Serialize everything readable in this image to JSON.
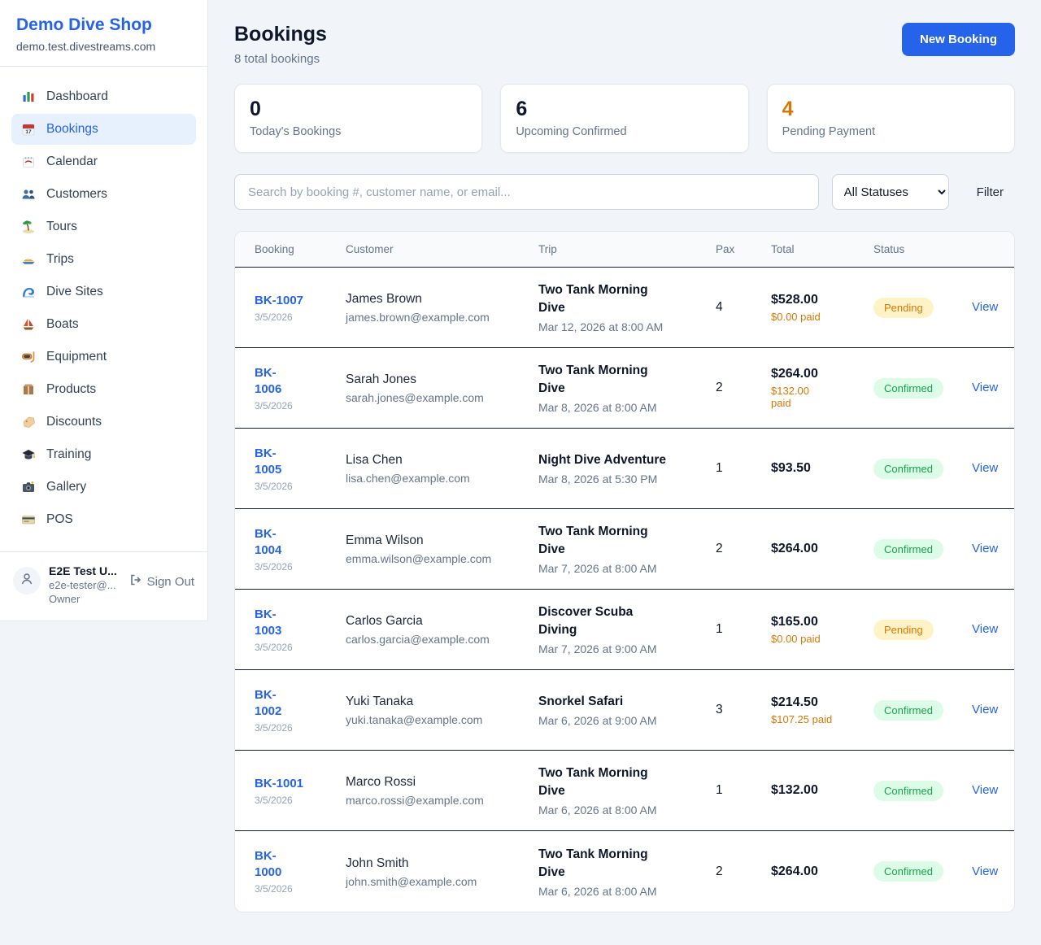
{
  "app": {
    "name": "Demo Dive Shop",
    "domain": "demo.test.divestreams.com"
  },
  "sidebar": {
    "active_item": "Bookings",
    "items": [
      {
        "label": "Dashboard",
        "icon": "dashboard"
      },
      {
        "label": "Bookings",
        "icon": "bookings"
      },
      {
        "label": "Calendar",
        "icon": "calendar"
      },
      {
        "label": "Customers",
        "icon": "customers"
      },
      {
        "label": "Tours",
        "icon": "tours"
      },
      {
        "label": "Trips",
        "icon": "trips"
      },
      {
        "label": "Dive Sites",
        "icon": "dive-sites"
      },
      {
        "label": "Boats",
        "icon": "boats"
      },
      {
        "label": "Equipment",
        "icon": "equipment"
      },
      {
        "label": "Products",
        "icon": "products"
      },
      {
        "label": "Discounts",
        "icon": "discounts"
      },
      {
        "label": "Training",
        "icon": "training"
      },
      {
        "label": "Gallery",
        "icon": "gallery"
      },
      {
        "label": "POS",
        "icon": "pos"
      }
    ],
    "user": {
      "name": "E2E Test U...",
      "email": "e2e-tester@...",
      "role": "Owner",
      "sign_out_label": "Sign Out"
    }
  },
  "header": {
    "title": "Bookings",
    "subtitle": "8 total bookings",
    "new_booking_label": "New Booking"
  },
  "stats": [
    {
      "value": "0",
      "label": "Today's Bookings",
      "color": "#0f172a"
    },
    {
      "value": "6",
      "label": "Upcoming Confirmed",
      "color": "#0f172a"
    },
    {
      "value": "4",
      "label": "Pending Payment",
      "color": "#d97706"
    }
  ],
  "filters": {
    "search_placeholder": "Search by booking #, customer name, or email...",
    "status_selected": "All Statuses",
    "filter_label": "Filter"
  },
  "table": {
    "columns": [
      "Booking",
      "Customer",
      "Trip",
      "Pax",
      "Total",
      "Status"
    ],
    "view_label": "View",
    "rows": [
      {
        "id": "BK-1007",
        "id_two_line": false,
        "date": "3/5/2026",
        "customer": "James Brown",
        "email": "james.brown@example.com",
        "trip": "Two Tank Morning Dive",
        "trip_datetime": "Mar 12, 2026 at 8:00 AM",
        "pax": "4",
        "total": "$528.00",
        "paid": "$0.00 paid",
        "paid_two_line": false,
        "status": "Pending"
      },
      {
        "id": "BK-1006",
        "id_two_line": true,
        "date": "3/5/2026",
        "customer": "Sarah Jones",
        "email": "sarah.jones@example.com",
        "trip": "Two Tank Morning Dive",
        "trip_datetime": "Mar 8, 2026 at 8:00 AM",
        "pax": "2",
        "total": "$264.00",
        "paid": "$132.00 paid",
        "paid_two_line": true,
        "status": "Confirmed"
      },
      {
        "id": "BK-1005",
        "id_two_line": true,
        "date": "3/5/2026",
        "customer": "Lisa Chen",
        "email": "lisa.chen@example.com",
        "trip": "Night Dive Adventure",
        "trip_datetime": "Mar 8, 2026 at 5:30 PM",
        "pax": "1",
        "total": "$93.50",
        "paid": "",
        "paid_two_line": false,
        "status": "Confirmed"
      },
      {
        "id": "BK-1004",
        "id_two_line": true,
        "date": "3/5/2026",
        "customer": "Emma Wilson",
        "email": "emma.wilson@example.com",
        "trip": "Two Tank Morning Dive",
        "trip_datetime": "Mar 7, 2026 at 8:00 AM",
        "pax": "2",
        "total": "$264.00",
        "paid": "",
        "paid_two_line": false,
        "status": "Confirmed"
      },
      {
        "id": "BK-1003",
        "id_two_line": true,
        "date": "3/5/2026",
        "customer": "Carlos Garcia",
        "email": "carlos.garcia@example.com",
        "trip": "Discover Scuba Diving",
        "trip_datetime": "Mar 7, 2026 at 9:00 AM",
        "pax": "1",
        "total": "$165.00",
        "paid": "$0.00 paid",
        "paid_two_line": false,
        "status": "Pending"
      },
      {
        "id": "BK-1002",
        "id_two_line": true,
        "date": "3/5/2026",
        "customer": "Yuki Tanaka",
        "email": "yuki.tanaka@example.com",
        "trip": "Snorkel Safari",
        "trip_datetime": "Mar 6, 2026 at 9:00 AM",
        "pax": "3",
        "total": "$214.50",
        "paid": "$107.25 paid",
        "paid_two_line": false,
        "status": "Confirmed"
      },
      {
        "id": "BK-1001",
        "id_two_line": false,
        "date": "3/5/2026",
        "customer": "Marco Rossi",
        "email": "marco.rossi@example.com",
        "trip": "Two Tank Morning Dive",
        "trip_datetime": "Mar 6, 2026 at 8:00 AM",
        "pax": "1",
        "total": "$132.00",
        "paid": "",
        "paid_two_line": false,
        "status": "Confirmed"
      },
      {
        "id": "BK-1000",
        "id_two_line": true,
        "date": "3/5/2026",
        "customer": "John Smith",
        "email": "john.smith@example.com",
        "trip": "Two Tank Morning Dive",
        "trip_datetime": "Mar 6, 2026 at 8:00 AM",
        "pax": "2",
        "total": "$264.00",
        "paid": "",
        "paid_two_line": false,
        "status": "Confirmed"
      }
    ]
  },
  "colors": {
    "accent": "#2563eb",
    "pending_bg": "#fef3c7",
    "pending_text": "#d97706",
    "confirmed_bg": "#dcfce7",
    "confirmed_text": "#16a34a",
    "paid_orange": "#d97706"
  }
}
